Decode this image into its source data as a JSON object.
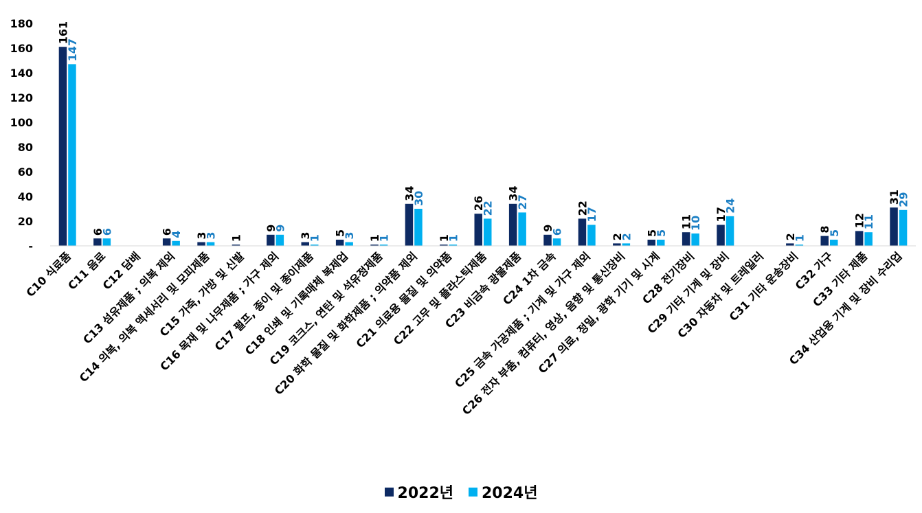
{
  "chart_data": {
    "type": "bar",
    "categories": [
      "C10 식료품",
      "C11 음료",
      "C12 담배",
      "C13 섬유제품 ; 의복 제외",
      "C14 의복, 의복 액세서리 및 모피제품",
      "C15 가죽, 가방 및 신발",
      "C16 목재 및 나무제품 ; 가구 제외",
      "C17 펄프, 종이 및 종이제품",
      "C18 인쇄 및 기록매체 복제업",
      "C19 코크스, 연탄 및 석유정제품",
      "C20 화학 물질 및 화학제품 ; 의약품 제외",
      "C21 의료용 물질 및 의약품",
      "C22 고무 및 플라스틱제품",
      "C23 비금속 광물제품",
      "C24 1차 금속",
      "C25 금속 가공제품 ; 기계 및 가구 제외",
      "C26 전자 부품, 컴퓨터, 영상, 음향 및 통신장비",
      "C27 의료, 정밀, 광학 기기 및 시계",
      "C28 전기장비",
      "C29 기타 기계 및 장비",
      "C30 자동차 및 트레일러",
      "C31 기타 운송장비",
      "C32 가구",
      "C33 기타 제품",
      "C34 산업용 기계 및 장비 수리업"
    ],
    "series": [
      {
        "name": "2022년",
        "color": "#0d2a63",
        "label_color": "#000000",
        "values": [
          161,
          6,
          null,
          6,
          3,
          1,
          9,
          3,
          5,
          1,
          34,
          1,
          26,
          34,
          9,
          22,
          2,
          5,
          11,
          17,
          null,
          2,
          8,
          12,
          31
        ]
      },
      {
        "name": "2024년",
        "color": "#00b0f0",
        "label_color": "#1b7fc4",
        "values": [
          147,
          6,
          null,
          4,
          3,
          null,
          9,
          1,
          3,
          1,
          30,
          1,
          22,
          27,
          6,
          17,
          2,
          5,
          10,
          24,
          null,
          1,
          5,
          11,
          29
        ]
      }
    ],
    "yticks": [
      "-",
      "20",
      "40",
      "60",
      "80",
      "100",
      "120",
      "140",
      "160",
      "180"
    ],
    "ylim": [
      0,
      180
    ],
    "grid": false,
    "legend_position": "bottom-center"
  }
}
